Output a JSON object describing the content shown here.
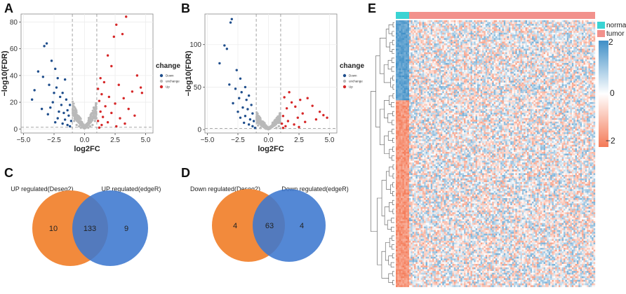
{
  "colors": {
    "down": "#1f4e8c",
    "unchange": "#b9b9b9",
    "up": "#d62728",
    "venn_left": "#f28a3c",
    "venn_right": "#3c77cf",
    "venn_overlap": "#5a6eaa",
    "normal": "#3ad3d3",
    "tumor": "#f2918c",
    "heat_high": "#3f8fc7",
    "heat_mid": "#ffffff",
    "heat_low": "#f47a57"
  },
  "chart_data": [
    {
      "panel": "A",
      "type": "scatter",
      "xlabel": "log2FC",
      "ylabel": "−log10(FDR)",
      "xlim": [
        -5.2,
        5.6
      ],
      "ylim": [
        -3,
        86
      ],
      "xticks": [
        "−5.0",
        "−2.5",
        "0.0",
        "2.5",
        "5.0"
      ],
      "xtick_values": [
        -5,
        -2.5,
        0,
        2.5,
        5
      ],
      "yticks": [
        "0",
        "20",
        "40",
        "60",
        "80"
      ],
      "ytick_values": [
        0,
        20,
        40,
        60,
        80
      ],
      "legend_title": "change",
      "legend_entries": [
        "Down",
        "unchange",
        "Up"
      ],
      "series": [
        {
          "name": "Down",
          "points": [
            [
              -3.1,
              64
            ],
            [
              -3.3,
              62
            ],
            [
              -2.7,
              51
            ],
            [
              -2.4,
              45
            ],
            [
              -3.8,
              43
            ],
            [
              -3.4,
              39
            ],
            [
              -2.2,
              38
            ],
            [
              -1.6,
              37
            ],
            [
              -2.9,
              33
            ],
            [
              -2.3,
              31
            ],
            [
              -4.1,
              29
            ],
            [
              -2.5,
              27
            ],
            [
              -1.8,
              27
            ],
            [
              -2.0,
              24
            ],
            [
              -4.3,
              22
            ],
            [
              -1.5,
              22
            ],
            [
              -2.6,
              20
            ],
            [
              -1.9,
              18
            ],
            [
              -1.2,
              18
            ],
            [
              -2.8,
              16
            ],
            [
              -3.5,
              15
            ],
            [
              -1.4,
              14
            ],
            [
              -2.1,
              13
            ],
            [
              -1.7,
              12
            ],
            [
              -3.0,
              11
            ],
            [
              -1.3,
              10
            ],
            [
              -2.2,
              8
            ],
            [
              -1.6,
              7
            ],
            [
              -1.1,
              6
            ],
            [
              -2.4,
              5
            ],
            [
              -1.8,
              4
            ],
            [
              -1.4,
              3
            ],
            [
              -1.2,
              2
            ]
          ]
        },
        {
          "name": "unchange",
          "points": [
            [
              -0.9,
              17
            ],
            [
              -0.8,
              12
            ],
            [
              -0.7,
              9
            ],
            [
              -0.6,
              6
            ],
            [
              -0.5,
              5
            ],
            [
              -0.4,
              4
            ],
            [
              -0.3,
              3
            ],
            [
              -0.2,
              2
            ],
            [
              -0.1,
              1
            ],
            [
              0.0,
              1
            ],
            [
              0.1,
              1
            ],
            [
              0.2,
              2
            ],
            [
              0.3,
              3
            ],
            [
              0.4,
              4
            ],
            [
              0.5,
              5
            ],
            [
              0.6,
              7
            ],
            [
              0.7,
              9
            ],
            [
              0.8,
              12
            ],
            [
              0.9,
              15
            ],
            [
              -0.95,
              10
            ],
            [
              0.95,
              11
            ],
            [
              -0.85,
              6
            ],
            [
              0.85,
              6
            ],
            [
              -0.65,
              3
            ],
            [
              0.65,
              3
            ],
            [
              -0.3,
              1
            ],
            [
              0.3,
              1
            ],
            [
              -0.75,
              14
            ],
            [
              0.75,
              16
            ],
            [
              0.55,
              11
            ],
            [
              -0.55,
              10
            ],
            [
              0.45,
              2
            ],
            [
              -0.45,
              2
            ]
          ]
        },
        {
          "name": "Up",
          "points": [
            [
              3.4,
              84
            ],
            [
              2.6,
              78
            ],
            [
              3.1,
              71
            ],
            [
              2.4,
              69
            ],
            [
              1.9,
              55
            ],
            [
              2.2,
              47
            ],
            [
              4.3,
              40
            ],
            [
              1.3,
              38
            ],
            [
              1.6,
              35
            ],
            [
              2.8,
              33
            ],
            [
              4.6,
              31
            ],
            [
              1.1,
              30
            ],
            [
              3.9,
              28
            ],
            [
              1.4,
              26
            ],
            [
              2.0,
              24
            ],
            [
              4.7,
              27
            ],
            [
              3.2,
              23
            ],
            [
              1.2,
              21
            ],
            [
              2.5,
              19
            ],
            [
              1.7,
              17
            ],
            [
              3.6,
              15
            ],
            [
              1.3,
              13
            ],
            [
              2.2,
              12
            ],
            [
              4.1,
              10
            ],
            [
              1.5,
              9
            ],
            [
              2.9,
              8
            ],
            [
              1.1,
              6
            ],
            [
              1.9,
              5
            ],
            [
              3.3,
              4
            ],
            [
              1.4,
              3
            ],
            [
              2.6,
              2
            ],
            [
              1.2,
              1
            ]
          ]
        }
      ]
    },
    {
      "panel": "B",
      "type": "scatter",
      "xlabel": "log2FC",
      "ylabel": "−log10(FDR)",
      "xlim": [
        -5.2,
        5.6
      ],
      "ylim": [
        -4,
        136
      ],
      "xticks": [
        "−5.0",
        "−2.5",
        "0.0",
        "2.5",
        "5.0"
      ],
      "xtick_values": [
        -5,
        -2.5,
        0,
        2.5,
        5
      ],
      "yticks": [
        "0",
        "50",
        "100"
      ],
      "ytick_values": [
        0,
        50,
        100
      ],
      "legend_title": "change",
      "legend_entries": [
        "Down",
        "unchange",
        "Up"
      ],
      "series": [
        {
          "name": "Down",
          "points": [
            [
              -3.0,
              130
            ],
            [
              -3.1,
              126
            ],
            [
              -3.6,
              99
            ],
            [
              -3.4,
              95
            ],
            [
              -4.0,
              78
            ],
            [
              -2.6,
              70
            ],
            [
              -2.3,
              60
            ],
            [
              -3.2,
              53
            ],
            [
              -1.9,
              50
            ],
            [
              -2.7,
              48
            ],
            [
              -2.2,
              44
            ],
            [
              -1.6,
              40
            ],
            [
              -2.4,
              37
            ],
            [
              -1.8,
              35
            ],
            [
              -2.9,
              31
            ],
            [
              -1.4,
              29
            ],
            [
              -2.1,
              26
            ],
            [
              -1.7,
              24
            ],
            [
              -2.5,
              21
            ],
            [
              -1.3,
              19
            ],
            [
              -1.9,
              16
            ],
            [
              -2.3,
              14
            ],
            [
              -1.5,
              12
            ],
            [
              -1.2,
              10
            ],
            [
              -2.0,
              8
            ],
            [
              -1.6,
              6
            ],
            [
              -1.3,
              4
            ],
            [
              -1.1,
              2
            ]
          ]
        },
        {
          "name": "unchange",
          "points": [
            [
              -0.9,
              14
            ],
            [
              -0.8,
              10
            ],
            [
              -0.7,
              7
            ],
            [
              -0.6,
              5
            ],
            [
              -0.5,
              4
            ],
            [
              -0.4,
              3
            ],
            [
              -0.3,
              2
            ],
            [
              -0.2,
              1
            ],
            [
              -0.1,
              1
            ],
            [
              0.0,
              1
            ],
            [
              0.1,
              1
            ],
            [
              0.2,
              2
            ],
            [
              0.3,
              3
            ],
            [
              0.4,
              4
            ],
            [
              0.5,
              5
            ],
            [
              0.6,
              6
            ],
            [
              0.7,
              8
            ],
            [
              0.8,
              11
            ],
            [
              0.9,
              13
            ],
            [
              -0.95,
              8
            ],
            [
              0.95,
              9
            ],
            [
              -0.85,
              5
            ],
            [
              0.85,
              4
            ],
            [
              -0.65,
              2
            ],
            [
              0.65,
              2
            ]
          ]
        },
        {
          "name": "Up",
          "points": [
            [
              1.7,
              44
            ],
            [
              1.3,
              38
            ],
            [
              3.2,
              37
            ],
            [
              2.6,
              35
            ],
            [
              1.9,
              32
            ],
            [
              3.6,
              28
            ],
            [
              2.2,
              27
            ],
            [
              1.5,
              25
            ],
            [
              4.2,
              21
            ],
            [
              2.8,
              19
            ],
            [
              4.5,
              17
            ],
            [
              1.2,
              16
            ],
            [
              2.4,
              14
            ],
            [
              3.9,
              12
            ],
            [
              1.6,
              10
            ],
            [
              3.0,
              9
            ],
            [
              1.1,
              7
            ],
            [
              2.1,
              6
            ],
            [
              4.8,
              14
            ],
            [
              1.4,
              4
            ],
            [
              2.5,
              3
            ],
            [
              1.2,
              2
            ]
          ]
        }
      ]
    },
    {
      "panel": "C",
      "type": "venn",
      "sets": [
        "UP  regulated(Deseq2)",
        "UP  regulated(edgeR)"
      ],
      "left_only": 10,
      "overlap": 133,
      "right_only": 9
    },
    {
      "panel": "D",
      "type": "venn",
      "sets": [
        "Down  regulated(Deseq2)",
        "Down  regulated(edgeR)"
      ],
      "left_only": 4,
      "overlap": 63,
      "right_only": 4
    },
    {
      "panel": "E",
      "type": "heatmap",
      "groups": [
        "normal",
        "tumor"
      ],
      "color_scale_ticks": [
        "2",
        "0",
        "−2"
      ],
      "color_scale_values": [
        2,
        0,
        -2
      ],
      "normal_fraction": 0.07,
      "normal_rows_fraction": 0.3
    }
  ]
}
